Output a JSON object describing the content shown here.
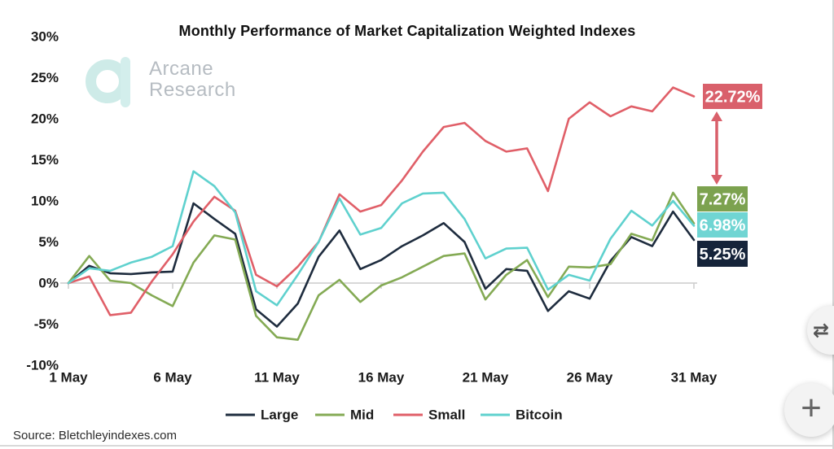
{
  "page": {
    "title": "Monthly Performance of Market Capitalization Weighted Indexes",
    "source": "Source: Bletchleyindexes.com",
    "watermark": {
      "line1": "Arcane",
      "line2": "Research"
    },
    "buttons": {
      "swap_icon": "⇄",
      "plus_icon": "+"
    }
  },
  "chart_data": {
    "type": "line",
    "title": "Monthly Performance of Market Capitalization Weighted Indexes",
    "xlabel": "",
    "ylabel": "",
    "ylim": [
      -10,
      30
    ],
    "y_ticks": [
      30,
      25,
      20,
      15,
      10,
      5,
      0,
      -5,
      -10
    ],
    "y_tick_suffix": "%",
    "x_days": [
      1,
      2,
      3,
      4,
      5,
      6,
      7,
      8,
      9,
      10,
      11,
      12,
      13,
      14,
      15,
      16,
      17,
      18,
      19,
      20,
      21,
      22,
      23,
      24,
      25,
      26,
      27,
      28,
      29,
      30,
      31
    ],
    "x_tick_days": [
      1,
      6,
      11,
      16,
      21,
      26,
      31
    ],
    "x_tick_labels": [
      "1 May",
      "6 May",
      "11 May",
      "16 May",
      "21 May",
      "26 May",
      "31 May"
    ],
    "grid": "zero-line-only",
    "legend_position": "bottom",
    "series": [
      {
        "name": "Large",
        "color": "#1e2c3e",
        "label_bg": "#16243a",
        "end_label": "5.25%",
        "values": [
          0,
          2.1,
          1.2,
          1.1,
          1.3,
          1.4,
          9.7,
          7.8,
          6.0,
          -3.2,
          -5.3,
          -2.5,
          3.2,
          6.4,
          1.7,
          2.8,
          4.5,
          5.8,
          7.3,
          5.0,
          -0.7,
          1.7,
          1.5,
          -3.4,
          -1.0,
          -1.9,
          2.7,
          5.6,
          4.5,
          8.7,
          5.25
        ]
      },
      {
        "name": "Mid",
        "color": "#84aa54",
        "label_bg": "#7ca24f",
        "end_label": "7.27%",
        "values": [
          0,
          3.3,
          0.3,
          0.0,
          -1.5,
          -2.8,
          2.5,
          5.8,
          5.3,
          -4.0,
          -6.6,
          -6.9,
          -1.5,
          0.4,
          -2.3,
          -0.3,
          0.7,
          2.0,
          3.3,
          3.6,
          -2.0,
          1.0,
          2.8,
          -1.7,
          2.0,
          1.9,
          2.3,
          6.0,
          5.2,
          11.0,
          7.27
        ]
      },
      {
        "name": "Small",
        "color": "#e05f68",
        "label_bg": "#d9606b",
        "end_label": "22.72%",
        "values": [
          0,
          0.8,
          -3.9,
          -3.6,
          0.2,
          3.5,
          7.5,
          10.5,
          8.8,
          1.0,
          -0.4,
          2.0,
          5.0,
          10.8,
          8.7,
          9.5,
          12.5,
          16.0,
          19.0,
          19.5,
          17.3,
          16.0,
          16.4,
          11.2,
          20.0,
          22.0,
          20.3,
          21.5,
          20.9,
          23.8,
          22.72
        ]
      },
      {
        "name": "Bitcoin",
        "color": "#5fd1ce",
        "label_bg": "#70d5d3",
        "end_label": "6.98%",
        "values": [
          0,
          1.8,
          1.5,
          2.5,
          3.2,
          4.5,
          13.6,
          11.8,
          8.6,
          -1.0,
          -2.7,
          1.0,
          5.0,
          10.3,
          5.9,
          6.7,
          9.7,
          10.9,
          11.0,
          7.8,
          3.0,
          4.2,
          4.3,
          -0.8,
          1.0,
          0.3,
          5.4,
          8.8,
          7.0,
          10.0,
          6.98
        ]
      }
    ],
    "annotations": [
      {
        "type": "double-arrow",
        "color": "#d9606b",
        "between_labels": [
          "22.72%",
          "7.27%"
        ]
      }
    ]
  }
}
